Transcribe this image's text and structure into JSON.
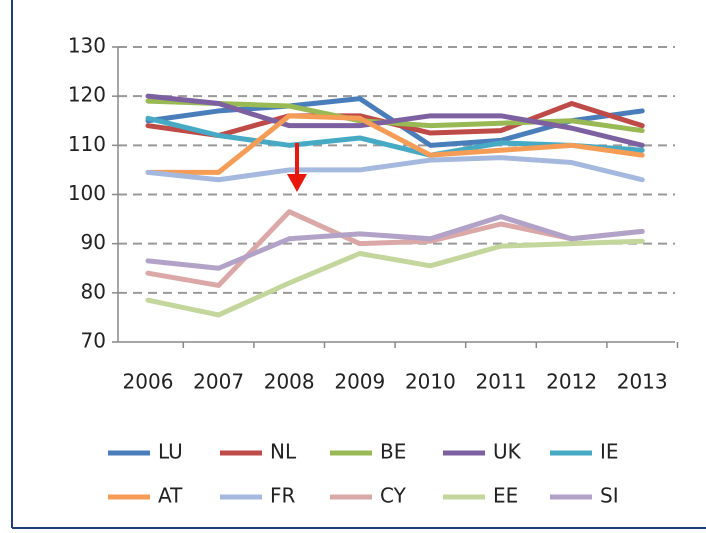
{
  "chart_data": {
    "type": "line",
    "categories": [
      "2006",
      "2007",
      "2008",
      "2009",
      "2010",
      "2011",
      "2012",
      "2013"
    ],
    "series": [
      {
        "name": "LU",
        "color": "#4a7ebb",
        "values": [
          115,
          117,
          118,
          119.5,
          110,
          111,
          115,
          117
        ]
      },
      {
        "name": "NL",
        "color": "#be4b48",
        "values": [
          114,
          112,
          116,
          116,
          112.5,
          113,
          118.5,
          114
        ]
      },
      {
        "name": "BE",
        "color": "#98b954",
        "values": [
          119,
          118.5,
          118,
          115,
          114,
          114.5,
          115,
          113
        ]
      },
      {
        "name": "UK",
        "color": "#7d60a0",
        "values": [
          120,
          118.5,
          114,
          114,
          116,
          116,
          113.5,
          110
        ]
      },
      {
        "name": "IE",
        "color": "#46aac4",
        "values": [
          115.5,
          112,
          110,
          111.5,
          108,
          110.5,
          110,
          109
        ]
      },
      {
        "name": "AT",
        "color": "#f59d56",
        "values": [
          104.5,
          104.5,
          116,
          115.5,
          108,
          109,
          110,
          108
        ]
      },
      {
        "name": "FR",
        "color": "#a5b9de",
        "values": [
          104.5,
          103,
          105,
          105,
          107,
          107.5,
          106.5,
          103
        ]
      },
      {
        "name": "CY",
        "color": "#dba8a8",
        "values": [
          84,
          81.5,
          96.5,
          90,
          90.5,
          94,
          91,
          92.5
        ]
      },
      {
        "name": "EE",
        "color": "#c3d69b",
        "values": [
          78.5,
          75.5,
          82,
          88,
          85.5,
          89.5,
          90,
          90.5
        ]
      },
      {
        "name": "SI",
        "color": "#b3a2c7",
        "values": [
          86.5,
          85,
          91,
          92,
          91,
          95.5,
          91,
          92.5
        ]
      }
    ],
    "ylim": [
      70,
      130
    ],
    "yticks": [
      70,
      80,
      90,
      100,
      110,
      120,
      130
    ],
    "grid": true,
    "legend": "bottom"
  }
}
